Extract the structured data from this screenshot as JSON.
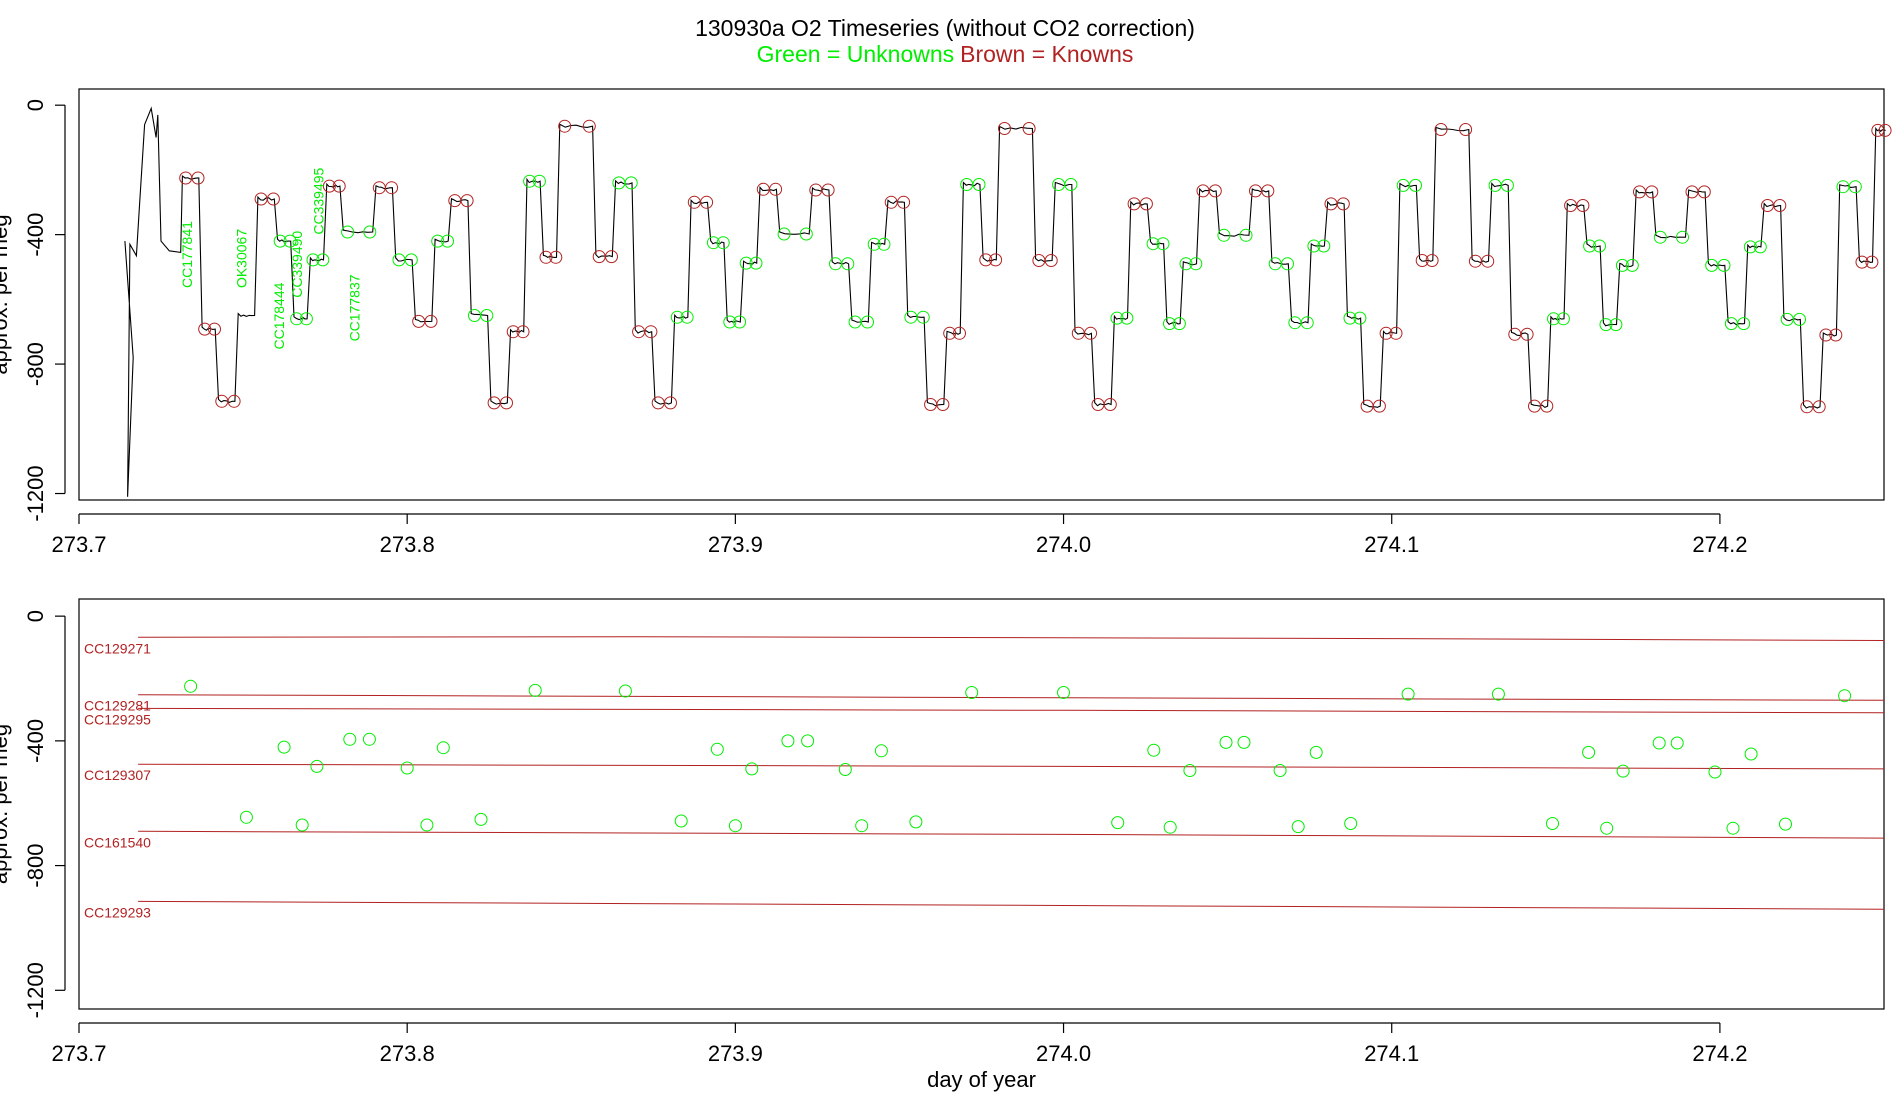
{
  "title": {
    "main": "130930a   O2 Timeseries (without CO2 correction)",
    "legend_green": "Green = Unknowns",
    "legend_brown": "Brown = Knowns"
  },
  "colors": {
    "unknown": "#00ee00",
    "known": "#b22222",
    "trace": "#000000",
    "axis": "#000000",
    "ref_line": "#b22222"
  },
  "chart_data": [
    {
      "type": "line",
      "name": "timeseries",
      "xlabel": "",
      "ylabel": "approx. per meg",
      "xlim": [
        273.7,
        274.25
      ],
      "ylim": [
        -1220,
        50
      ],
      "xticks": [
        273.7,
        273.8,
        273.9,
        274.0,
        274.1,
        274.2
      ],
      "xtick_labels": [
        "273.7",
        "273.8",
        "273.9",
        "274.0",
        "274.1",
        "274.2"
      ],
      "yticks": [
        0,
        -400,
        -800,
        -1200
      ],
      "ytick_labels": [
        "0",
        "-400",
        "-800",
        "-1200"
      ],
      "trace_start": [
        [
          273.714,
          -420
        ],
        [
          273.7165,
          -780
        ],
        [
          273.7148,
          -1210
        ],
        [
          273.7155,
          -430
        ],
        [
          273.7175,
          -465
        ],
        [
          273.7185,
          -300
        ],
        [
          273.72,
          -60
        ],
        [
          273.722,
          -10
        ],
        [
          273.7235,
          -100
        ],
        [
          273.724,
          -30
        ],
        [
          273.725,
          -420
        ],
        [
          273.7275,
          -450
        ],
        [
          273.731,
          -455
        ]
      ],
      "segments": [
        {
          "start": 273.7315,
          "end": 273.7365,
          "y": -225,
          "marker": "known"
        },
        {
          "start": 273.7375,
          "end": 273.7415,
          "y": -692,
          "marker": "known"
        },
        {
          "start": 273.7425,
          "end": 273.7475,
          "y": -915,
          "marker": "known"
        },
        {
          "start": 273.7485,
          "end": 273.7535,
          "y": -650,
          "marker": "none"
        },
        {
          "start": 273.7545,
          "end": 273.7595,
          "y": -290,
          "marker": "known"
        },
        {
          "start": 273.7605,
          "end": 273.7645,
          "y": -420,
          "marker": "unknown"
        },
        {
          "start": 273.7655,
          "end": 273.7695,
          "y": -660,
          "marker": "unknown"
        },
        {
          "start": 273.7705,
          "end": 273.7745,
          "y": -478,
          "marker": "unknown"
        },
        {
          "start": 273.7755,
          "end": 273.7795,
          "y": -250,
          "marker": "known"
        },
        {
          "start": 273.7805,
          "end": 273.7895,
          "y": -392,
          "marker": "unknown"
        },
        {
          "start": 273.7905,
          "end": 273.7955,
          "y": -255,
          "marker": "known"
        },
        {
          "start": 273.7965,
          "end": 273.8015,
          "y": -478,
          "marker": "unknown"
        },
        {
          "start": 273.8025,
          "end": 273.8075,
          "y": -668,
          "marker": "known"
        },
        {
          "start": 273.8085,
          "end": 273.8125,
          "y": -420,
          "marker": "unknown"
        },
        {
          "start": 273.8135,
          "end": 273.8185,
          "y": -295,
          "marker": "known"
        },
        {
          "start": 273.8195,
          "end": 273.8245,
          "y": -650,
          "marker": "unknown"
        },
        {
          "start": 273.8255,
          "end": 273.8305,
          "y": -920,
          "marker": "known"
        },
        {
          "start": 273.8315,
          "end": 273.8355,
          "y": -700,
          "marker": "known"
        },
        {
          "start": 273.8365,
          "end": 273.8405,
          "y": -235,
          "marker": "unknown"
        },
        {
          "start": 273.8415,
          "end": 273.8455,
          "y": -470,
          "marker": "known"
        },
        {
          "start": 273.8465,
          "end": 273.8565,
          "y": -65,
          "marker": "known"
        },
        {
          "start": 273.8575,
          "end": 273.8625,
          "y": -468,
          "marker": "known"
        },
        {
          "start": 273.8635,
          "end": 273.8685,
          "y": -240,
          "marker": "unknown"
        },
        {
          "start": 273.8695,
          "end": 273.8745,
          "y": -700,
          "marker": "known"
        },
        {
          "start": 273.8755,
          "end": 273.8805,
          "y": -920,
          "marker": "known"
        },
        {
          "start": 273.8815,
          "end": 273.8855,
          "y": -655,
          "marker": "unknown"
        },
        {
          "start": 273.8865,
          "end": 273.8915,
          "y": -300,
          "marker": "known"
        },
        {
          "start": 273.8925,
          "end": 273.8965,
          "y": -425,
          "marker": "unknown"
        },
        {
          "start": 273.8975,
          "end": 273.9015,
          "y": -670,
          "marker": "unknown"
        },
        {
          "start": 273.9025,
          "end": 273.9065,
          "y": -488,
          "marker": "unknown"
        },
        {
          "start": 273.9075,
          "end": 273.9125,
          "y": -260,
          "marker": "known"
        },
        {
          "start": 273.9135,
          "end": 273.9225,
          "y": -398,
          "marker": "unknown"
        },
        {
          "start": 273.9235,
          "end": 273.9285,
          "y": -262,
          "marker": "known"
        },
        {
          "start": 273.9295,
          "end": 273.9345,
          "y": -490,
          "marker": "unknown"
        },
        {
          "start": 273.9355,
          "end": 273.9405,
          "y": -670,
          "marker": "unknown"
        },
        {
          "start": 273.9415,
          "end": 273.9455,
          "y": -430,
          "marker": "unknown"
        },
        {
          "start": 273.9465,
          "end": 273.9515,
          "y": -300,
          "marker": "known"
        },
        {
          "start": 273.9525,
          "end": 273.9575,
          "y": -655,
          "marker": "unknown"
        },
        {
          "start": 273.9585,
          "end": 273.9635,
          "y": -925,
          "marker": "known"
        },
        {
          "start": 273.9645,
          "end": 273.9685,
          "y": -705,
          "marker": "known"
        },
        {
          "start": 273.9695,
          "end": 273.9745,
          "y": -245,
          "marker": "unknown"
        },
        {
          "start": 273.9755,
          "end": 273.9795,
          "y": -478,
          "marker": "known"
        },
        {
          "start": 273.9805,
          "end": 273.9905,
          "y": -72,
          "marker": "known"
        },
        {
          "start": 273.9915,
          "end": 273.9965,
          "y": -480,
          "marker": "known"
        },
        {
          "start": 273.9975,
          "end": 274.0025,
          "y": -245,
          "marker": "unknown"
        },
        {
          "start": 274.0035,
          "end": 274.0085,
          "y": -705,
          "marker": "known"
        },
        {
          "start": 274.0095,
          "end": 274.0145,
          "y": -925,
          "marker": "known"
        },
        {
          "start": 274.0155,
          "end": 274.0195,
          "y": -658,
          "marker": "unknown"
        },
        {
          "start": 274.0205,
          "end": 274.0255,
          "y": -305,
          "marker": "known"
        },
        {
          "start": 274.0265,
          "end": 274.0305,
          "y": -428,
          "marker": "unknown"
        },
        {
          "start": 274.0315,
          "end": 274.0355,
          "y": -675,
          "marker": "unknown"
        },
        {
          "start": 274.0365,
          "end": 274.0405,
          "y": -490,
          "marker": "unknown"
        },
        {
          "start": 274.0415,
          "end": 274.0465,
          "y": -265,
          "marker": "known"
        },
        {
          "start": 274.0475,
          "end": 274.0565,
          "y": -402,
          "marker": "unknown"
        },
        {
          "start": 274.0575,
          "end": 274.0625,
          "y": -265,
          "marker": "known"
        },
        {
          "start": 274.0635,
          "end": 274.0685,
          "y": -490,
          "marker": "unknown"
        },
        {
          "start": 274.0695,
          "end": 274.0745,
          "y": -672,
          "marker": "unknown"
        },
        {
          "start": 274.0755,
          "end": 274.0795,
          "y": -435,
          "marker": "unknown"
        },
        {
          "start": 274.0805,
          "end": 274.0855,
          "y": -305,
          "marker": "known"
        },
        {
          "start": 274.0865,
          "end": 274.0905,
          "y": -658,
          "marker": "unknown"
        },
        {
          "start": 274.0915,
          "end": 274.0965,
          "y": -930,
          "marker": "known"
        },
        {
          "start": 274.0975,
          "end": 274.1015,
          "y": -705,
          "marker": "known"
        },
        {
          "start": 274.1025,
          "end": 274.1075,
          "y": -248,
          "marker": "unknown"
        },
        {
          "start": 274.1085,
          "end": 274.1125,
          "y": -480,
          "marker": "known"
        },
        {
          "start": 274.1135,
          "end": 274.1235,
          "y": -75,
          "marker": "known"
        },
        {
          "start": 274.1245,
          "end": 274.1295,
          "y": -482,
          "marker": "known"
        },
        {
          "start": 274.1305,
          "end": 274.1355,
          "y": -248,
          "marker": "unknown"
        },
        {
          "start": 274.1365,
          "end": 274.1415,
          "y": -708,
          "marker": "known"
        },
        {
          "start": 274.1425,
          "end": 274.1475,
          "y": -930,
          "marker": "known"
        },
        {
          "start": 274.1485,
          "end": 274.1525,
          "y": -660,
          "marker": "unknown"
        },
        {
          "start": 274.1535,
          "end": 274.1585,
          "y": -310,
          "marker": "known"
        },
        {
          "start": 274.1595,
          "end": 274.1635,
          "y": -435,
          "marker": "unknown"
        },
        {
          "start": 274.1645,
          "end": 274.1685,
          "y": -678,
          "marker": "unknown"
        },
        {
          "start": 274.1695,
          "end": 274.1735,
          "y": -495,
          "marker": "unknown"
        },
        {
          "start": 274.1745,
          "end": 274.1795,
          "y": -268,
          "marker": "known"
        },
        {
          "start": 274.1805,
          "end": 274.1895,
          "y": -408,
          "marker": "unknown"
        },
        {
          "start": 274.1905,
          "end": 274.1955,
          "y": -268,
          "marker": "known"
        },
        {
          "start": 274.1965,
          "end": 274.2015,
          "y": -495,
          "marker": "unknown"
        },
        {
          "start": 274.2025,
          "end": 274.2075,
          "y": -675,
          "marker": "unknown"
        },
        {
          "start": 274.2085,
          "end": 274.2125,
          "y": -438,
          "marker": "unknown"
        },
        {
          "start": 274.2135,
          "end": 274.2185,
          "y": -310,
          "marker": "known"
        },
        {
          "start": 274.2195,
          "end": 274.2245,
          "y": -662,
          "marker": "unknown"
        },
        {
          "start": 274.2255,
          "end": 274.2305,
          "y": -932,
          "marker": "known"
        },
        {
          "start": 274.2315,
          "end": 274.2355,
          "y": -710,
          "marker": "known"
        },
        {
          "start": 274.2365,
          "end": 274.2415,
          "y": -252,
          "marker": "unknown"
        },
        {
          "start": 274.2425,
          "end": 274.2465,
          "y": -485,
          "marker": "known"
        },
        {
          "start": 274.2475,
          "end": 274.2505,
          "y": -78,
          "marker": "known"
        }
      ],
      "annotations": [
        {
          "text": "CC177841",
          "x": 273.7345,
          "y": -565
        },
        {
          "text": "OK30067",
          "x": 273.751,
          "y": -565
        },
        {
          "text": "CC178444",
          "x": 273.7625,
          "y": -755
        },
        {
          "text": "CC339490",
          "x": 273.768,
          "y": -595
        },
        {
          "text": "CC339495",
          "x": 273.7745,
          "y": -400
        },
        {
          "text": "CC177837",
          "x": 273.7855,
          "y": -730
        }
      ]
    },
    {
      "type": "scatter",
      "name": "unknowns-vs-references",
      "xlabel": "day of year",
      "ylabel": "approx. per meg",
      "xlim": [
        273.7,
        274.25
      ],
      "ylim": [
        -1260,
        55
      ],
      "xticks": [
        273.7,
        273.8,
        273.9,
        274.0,
        274.1,
        274.2
      ],
      "xtick_labels": [
        "273.7",
        "273.8",
        "273.9",
        "274.0",
        "274.1",
        "274.2"
      ],
      "yticks": [
        0,
        -400,
        -800,
        -1200
      ],
      "ytick_labels": [
        "0",
        "-400",
        "-800",
        "-1200"
      ],
      "reference_lines": [
        {
          "name": "CC129271",
          "x": [
            273.718,
            273.87,
            274.1,
            274.25
          ],
          "y": [
            -68,
            -66,
            -72,
            -78
          ]
        },
        {
          "name": "CC129281",
          "x": [
            273.718,
            274.0,
            274.25
          ],
          "y": [
            -252,
            -262,
            -270
          ]
        },
        {
          "name": "CC129295",
          "x": [
            273.718,
            274.0,
            274.25
          ],
          "y": [
            -296,
            -302,
            -310
          ]
        },
        {
          "name": "CC129307",
          "x": [
            273.718,
            274.0,
            274.25
          ],
          "y": [
            -475,
            -482,
            -490
          ]
        },
        {
          "name": "CC161540",
          "x": [
            273.718,
            274.0,
            274.25
          ],
          "y": [
            -690,
            -700,
            -712
          ]
        },
        {
          "name": "CC129293",
          "x": [
            273.718,
            274.0,
            274.25
          ],
          "y": [
            -915,
            -928,
            -940
          ]
        }
      ],
      "unknowns": {
        "x": [
          273.734,
          273.751,
          273.7625,
          273.768,
          273.7725,
          273.7825,
          273.7885,
          273.8,
          273.806,
          273.811,
          273.8225,
          273.839,
          273.8665,
          273.8835,
          273.8945,
          273.9,
          273.905,
          273.916,
          273.922,
          273.9335,
          273.9385,
          273.9445,
          273.955,
          273.972,
          274.0,
          274.0165,
          274.0275,
          274.0325,
          274.0385,
          274.0495,
          274.055,
          274.066,
          274.0715,
          274.077,
          274.0875,
          274.105,
          274.1325,
          274.149,
          274.16,
          274.1655,
          274.1705,
          274.1815,
          274.187,
          274.1985,
          274.204,
          274.2095,
          274.22,
          274.238
        ],
        "y": [
          -225,
          -645,
          -420,
          -670,
          -482,
          -395,
          -395,
          -487,
          -670,
          -422,
          -652,
          -238,
          -240,
          -657,
          -427,
          -672,
          -490,
          -400,
          -400,
          -492,
          -672,
          -432,
          -660,
          -245,
          -245,
          -662,
          -430,
          -677,
          -495,
          -405,
          -405,
          -495,
          -675,
          -437,
          -665,
          -250,
          -250,
          -665,
          -437,
          -680,
          -497,
          -407,
          -407,
          -500,
          -680,
          -442,
          -667,
          -255
        ]
      }
    }
  ]
}
